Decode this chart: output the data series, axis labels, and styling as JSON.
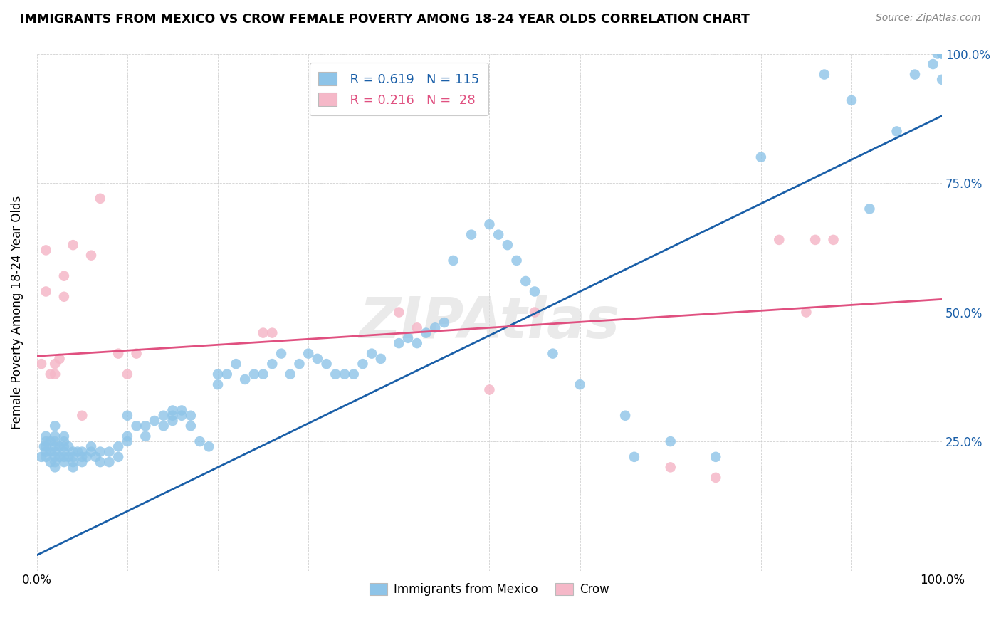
{
  "title": "IMMIGRANTS FROM MEXICO VS CROW FEMALE POVERTY AMONG 18-24 YEAR OLDS CORRELATION CHART",
  "source": "Source: ZipAtlas.com",
  "ylabel": "Female Poverty Among 18-24 Year Olds",
  "xlim": [
    0,
    1
  ],
  "ylim": [
    0,
    1
  ],
  "blue_color": "#8ec4e8",
  "pink_color": "#f5b8c8",
  "blue_line_color": "#1a5fa8",
  "pink_line_color": "#e05080",
  "watermark": "ZIPAtlas",
  "legend_blue_R": "R = 0.619",
  "legend_blue_N": "N = 115",
  "legend_pink_R": "R = 0.216",
  "legend_pink_N": "N =  28",
  "legend_label_blue": "Immigrants from Mexico",
  "legend_label_pink": "Crow",
  "blue_line_x0": 0.0,
  "blue_line_y0": 0.03,
  "blue_line_x1": 1.0,
  "blue_line_y1": 0.88,
  "pink_line_x0": 0.0,
  "pink_line_y0": 0.415,
  "pink_line_x1": 1.0,
  "pink_line_y1": 0.525,
  "blue_dots_x": [
    0.005,
    0.008,
    0.01,
    0.01,
    0.01,
    0.01,
    0.01,
    0.015,
    0.015,
    0.015,
    0.02,
    0.02,
    0.02,
    0.02,
    0.02,
    0.02,
    0.02,
    0.02,
    0.025,
    0.025,
    0.03,
    0.03,
    0.03,
    0.03,
    0.03,
    0.03,
    0.035,
    0.035,
    0.04,
    0.04,
    0.04,
    0.04,
    0.045,
    0.05,
    0.05,
    0.05,
    0.055,
    0.06,
    0.06,
    0.065,
    0.07,
    0.07,
    0.08,
    0.08,
    0.09,
    0.09,
    0.1,
    0.1,
    0.1,
    0.11,
    0.12,
    0.12,
    0.13,
    0.14,
    0.14,
    0.15,
    0.15,
    0.15,
    0.16,
    0.16,
    0.17,
    0.17,
    0.18,
    0.19,
    0.2,
    0.2,
    0.21,
    0.22,
    0.23,
    0.24,
    0.25,
    0.26,
    0.27,
    0.28,
    0.29,
    0.3,
    0.31,
    0.32,
    0.33,
    0.34,
    0.35,
    0.36,
    0.37,
    0.38,
    0.4,
    0.41,
    0.42,
    0.43,
    0.44,
    0.45,
    0.46,
    0.48,
    0.5,
    0.51,
    0.52,
    0.53,
    0.54,
    0.55,
    0.57,
    0.6,
    0.65,
    0.66,
    0.7,
    0.75,
    0.8,
    0.87,
    0.9,
    0.92,
    0.95,
    0.97,
    0.99,
    0.995,
    1.0,
    1.0,
    1.0
  ],
  "blue_dots_y": [
    0.22,
    0.24,
    0.22,
    0.23,
    0.24,
    0.25,
    0.26,
    0.21,
    0.23,
    0.25,
    0.2,
    0.21,
    0.22,
    0.23,
    0.24,
    0.25,
    0.26,
    0.28,
    0.22,
    0.24,
    0.21,
    0.22,
    0.23,
    0.24,
    0.25,
    0.26,
    0.22,
    0.24,
    0.22,
    0.23,
    0.21,
    0.2,
    0.23,
    0.22,
    0.23,
    0.21,
    0.22,
    0.23,
    0.24,
    0.22,
    0.23,
    0.21,
    0.23,
    0.21,
    0.22,
    0.24,
    0.3,
    0.25,
    0.26,
    0.28,
    0.28,
    0.26,
    0.29,
    0.3,
    0.28,
    0.31,
    0.3,
    0.29,
    0.31,
    0.3,
    0.3,
    0.28,
    0.25,
    0.24,
    0.38,
    0.36,
    0.38,
    0.4,
    0.37,
    0.38,
    0.38,
    0.4,
    0.42,
    0.38,
    0.4,
    0.42,
    0.41,
    0.4,
    0.38,
    0.38,
    0.38,
    0.4,
    0.42,
    0.41,
    0.44,
    0.45,
    0.44,
    0.46,
    0.47,
    0.48,
    0.6,
    0.65,
    0.67,
    0.65,
    0.63,
    0.6,
    0.56,
    0.54,
    0.42,
    0.36,
    0.3,
    0.22,
    0.25,
    0.22,
    0.8,
    0.96,
    0.91,
    0.7,
    0.85,
    0.96,
    0.98,
    1.0,
    0.95,
    1.0,
    1.0
  ],
  "pink_dots_x": [
    0.005,
    0.01,
    0.01,
    0.015,
    0.02,
    0.02,
    0.025,
    0.03,
    0.03,
    0.04,
    0.05,
    0.06,
    0.07,
    0.09,
    0.1,
    0.11,
    0.25,
    0.26,
    0.4,
    0.42,
    0.5,
    0.55,
    0.7,
    0.75,
    0.82,
    0.85,
    0.86,
    0.88
  ],
  "pink_dots_y": [
    0.4,
    0.54,
    0.62,
    0.38,
    0.38,
    0.4,
    0.41,
    0.53,
    0.57,
    0.63,
    0.3,
    0.61,
    0.72,
    0.42,
    0.38,
    0.42,
    0.46,
    0.46,
    0.5,
    0.47,
    0.35,
    0.5,
    0.2,
    0.18,
    0.64,
    0.5,
    0.64,
    0.64
  ]
}
